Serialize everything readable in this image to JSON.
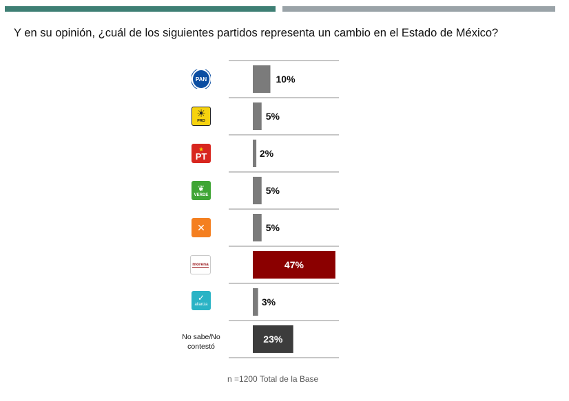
{
  "question": "Y en su opinión, ¿cuál de los siguientes partidos representa un cambio en el Estado de México?",
  "note": "n =1200 Total de la Base",
  "colors": {
    "bar_default": "#7b7b7b",
    "bar_highlight": "#8b0000",
    "bar_dark": "#3c3c3c",
    "top_bar_left": "#3e7f74",
    "top_bar_right": "#9aa3a8"
  },
  "logos": {
    "pan": "PAN",
    "prd": "PRD",
    "pt": "PT",
    "verde": "VERDE",
    "morena": "morena",
    "nueva_alianza": "alianza"
  },
  "chart_data": {
    "type": "bar",
    "orientation": "horizontal",
    "categories": [
      "PAN",
      "PRD",
      "PT",
      "VERDE",
      "Movimiento Ciudadano",
      "morena",
      "Nueva Alianza",
      "No sabe/No contestó"
    ],
    "values": [
      10,
      5,
      2,
      5,
      5,
      47,
      3,
      23
    ],
    "value_labels": [
      "10%",
      "5%",
      "2%",
      "5%",
      "5%",
      "47%",
      "3%",
      "23%"
    ],
    "unit": "%",
    "highlight": "morena",
    "grid": true
  }
}
